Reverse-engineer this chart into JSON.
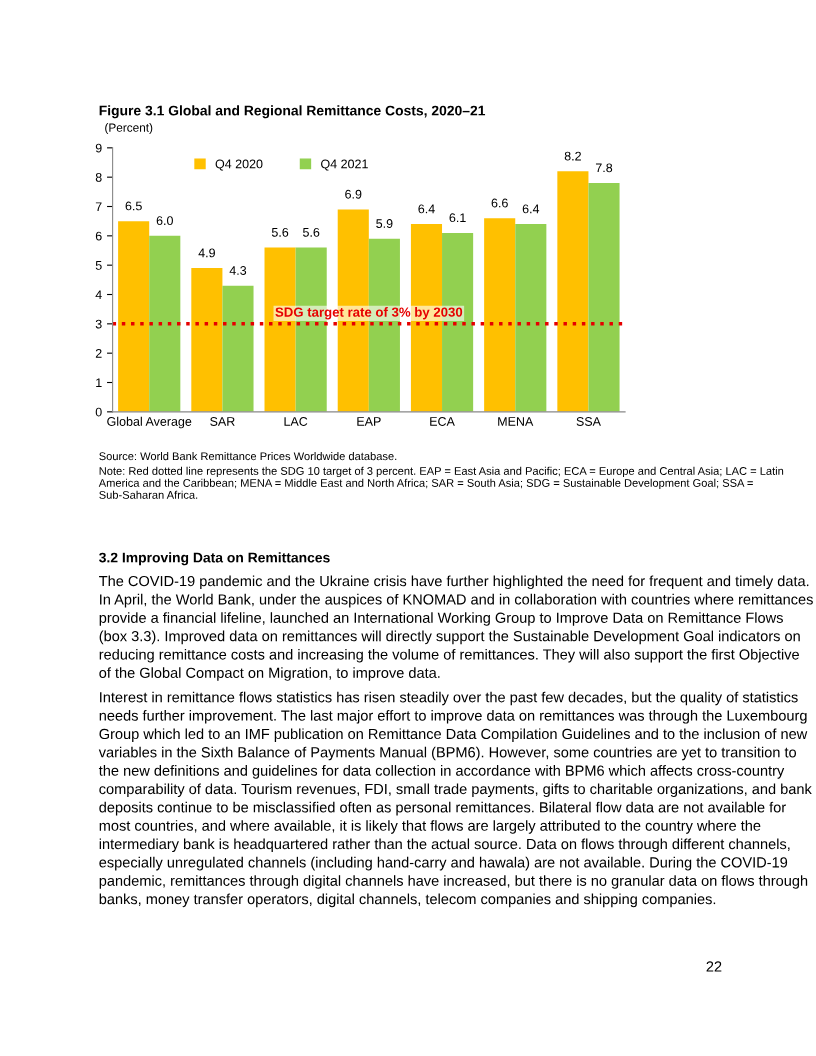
{
  "chart_data": {
    "type": "bar",
    "title": "Figure 3.1 Global and Regional Remittance Costs, 2020–21",
    "ylabel": "(Percent)",
    "categories": [
      "Global Average",
      "SAR",
      "LAC",
      "EAP",
      "ECA",
      "MENA",
      "SSA"
    ],
    "series": [
      {
        "name": "Q4 2020",
        "color": "#ffc000",
        "values": [
          6.5,
          4.9,
          5.6,
          6.9,
          6.4,
          6.6,
          8.2
        ],
        "value_labels": [
          "6.5",
          "4.9",
          "5.6",
          "6.9",
          "6.4",
          "6.6",
          "8.2"
        ]
      },
      {
        "name": "Q4 2021",
        "color": "#92d050",
        "values": [
          6.0,
          4.3,
          5.6,
          5.9,
          6.1,
          6.4,
          7.8
        ],
        "value_labels": [
          "6.0",
          "4.3",
          "5.6",
          "5.9",
          "6.1",
          "6.4",
          "7.8"
        ]
      }
    ],
    "ylim": [
      0,
      9
    ],
    "yticks": [
      0,
      1,
      2,
      3,
      4,
      5,
      6,
      7,
      8,
      9
    ],
    "ref_lines": [
      {
        "axis": "y",
        "value": 3,
        "label": "SDG target rate of 3% by 2030",
        "color": "#e60000",
        "line_style": "dotted"
      }
    ],
    "grid": false,
    "legend": "top",
    "annotations": [
      "Source: World Bank Remittance Prices Worldwide database.",
      "Note: Red dotted line represents the SDG 10 target of 3 percent. EAP = East Asia and Pacific; ECA = Europe and Central Asia; LAC = Latin America and the Caribbean; MENA = Middle East and North Africa; SAR = South Asia; SDG = Sustainable Development Goal; SSA = Sub-Saharan Africa.",
      "3.2 Improving Data on Remittances",
      "The COVID-19 pandemic and the Ukraine crisis have further highlighted the need for frequent and timely data. In April, the World Bank, under the auspices of KNOMAD and in collaboration with countries where remittances provide a financial lifeline, launched an International Working Group to Improve Data on Remittance Flows (box 3.3). Improved data on remittances will directly support the Sustainable Development Goal indicators on reducing remittance costs and increasing the volume of remittances. They will also support the first Objective of the Global Compact on Migration, to improve data.",
      "Interest in remittance flows statistics has risen steadily over the past few decades, but the quality of statistics needs further improvement. The last major effort to improve data on remittances was through the Luxembourg Group which led to an IMF publication on Remittance Data Compilation Guidelines and to the inclusion of new variables in the Sixth Balance of Payments Manual (BPM6). However, some countries are yet to transition to the new definitions and guidelines for data collection in accordance with BPM6 which affects cross-country comparability of data. Tourism revenues, FDI, small trade payments, gifts to charitable organizations, and bank deposits continue to be misclassified often as personal remittances. Bilateral flow data are not available for most countries, and where available, it is likely that flows are largely attributed to the country where the intermediary bank is headquartered rather than the actual source. Data on flows through different channels, especially unregulated channels (including hand-carry and hawala) are not available. During the COVID-19 pandemic, remittances through digital channels have increased, but there is no granular data on flows through banks, money transfer operators, digital channels, telecom companies and shipping companies.",
      "22"
    ]
  }
}
